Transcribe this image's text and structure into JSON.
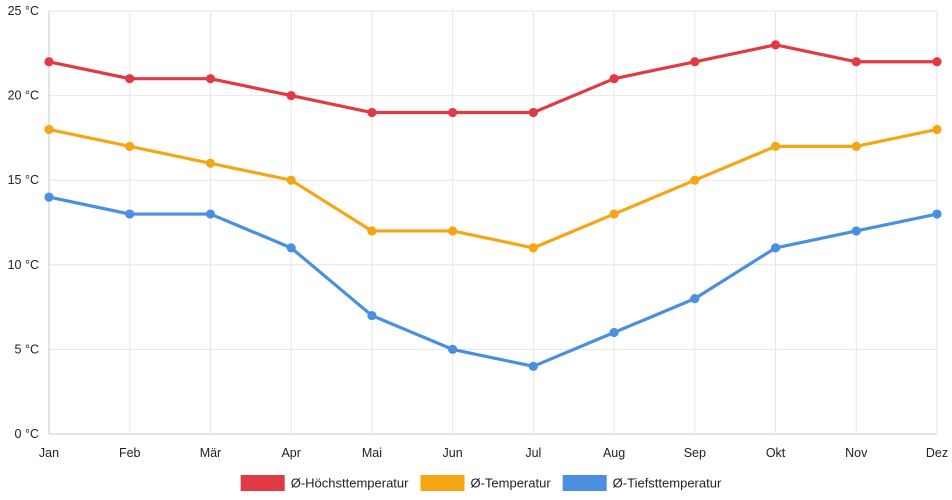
{
  "chart_data": {
    "type": "line",
    "title": "",
    "xlabel": "",
    "ylabel": "",
    "categories": [
      "Jan",
      "Feb",
      "Mär",
      "Apr",
      "Mai",
      "Jun",
      "Jul",
      "Aug",
      "Sep",
      "Okt",
      "Nov",
      "Dez"
    ],
    "ylim": [
      0,
      25
    ],
    "yticks": [
      0,
      5,
      10,
      15,
      20,
      25
    ],
    "y_unit": " °C",
    "grid": true,
    "legend_position": "bottom",
    "series": [
      {
        "name": "Ø-Höchsttemperatur",
        "color": "#e23a45",
        "values": [
          22,
          21,
          21,
          20,
          19,
          19,
          19,
          21,
          22,
          23,
          22,
          22
        ]
      },
      {
        "name": "Ø-Temperatur",
        "color": "#f6a614",
        "values": [
          18,
          17,
          16,
          15,
          12,
          12,
          11,
          13,
          15,
          17,
          17,
          18
        ]
      },
      {
        "name": "Ø-Tiefsttemperatur",
        "color": "#4a8fe0",
        "values": [
          14,
          13,
          13,
          11,
          7,
          5,
          4,
          6,
          8,
          11,
          12,
          13
        ]
      }
    ]
  }
}
